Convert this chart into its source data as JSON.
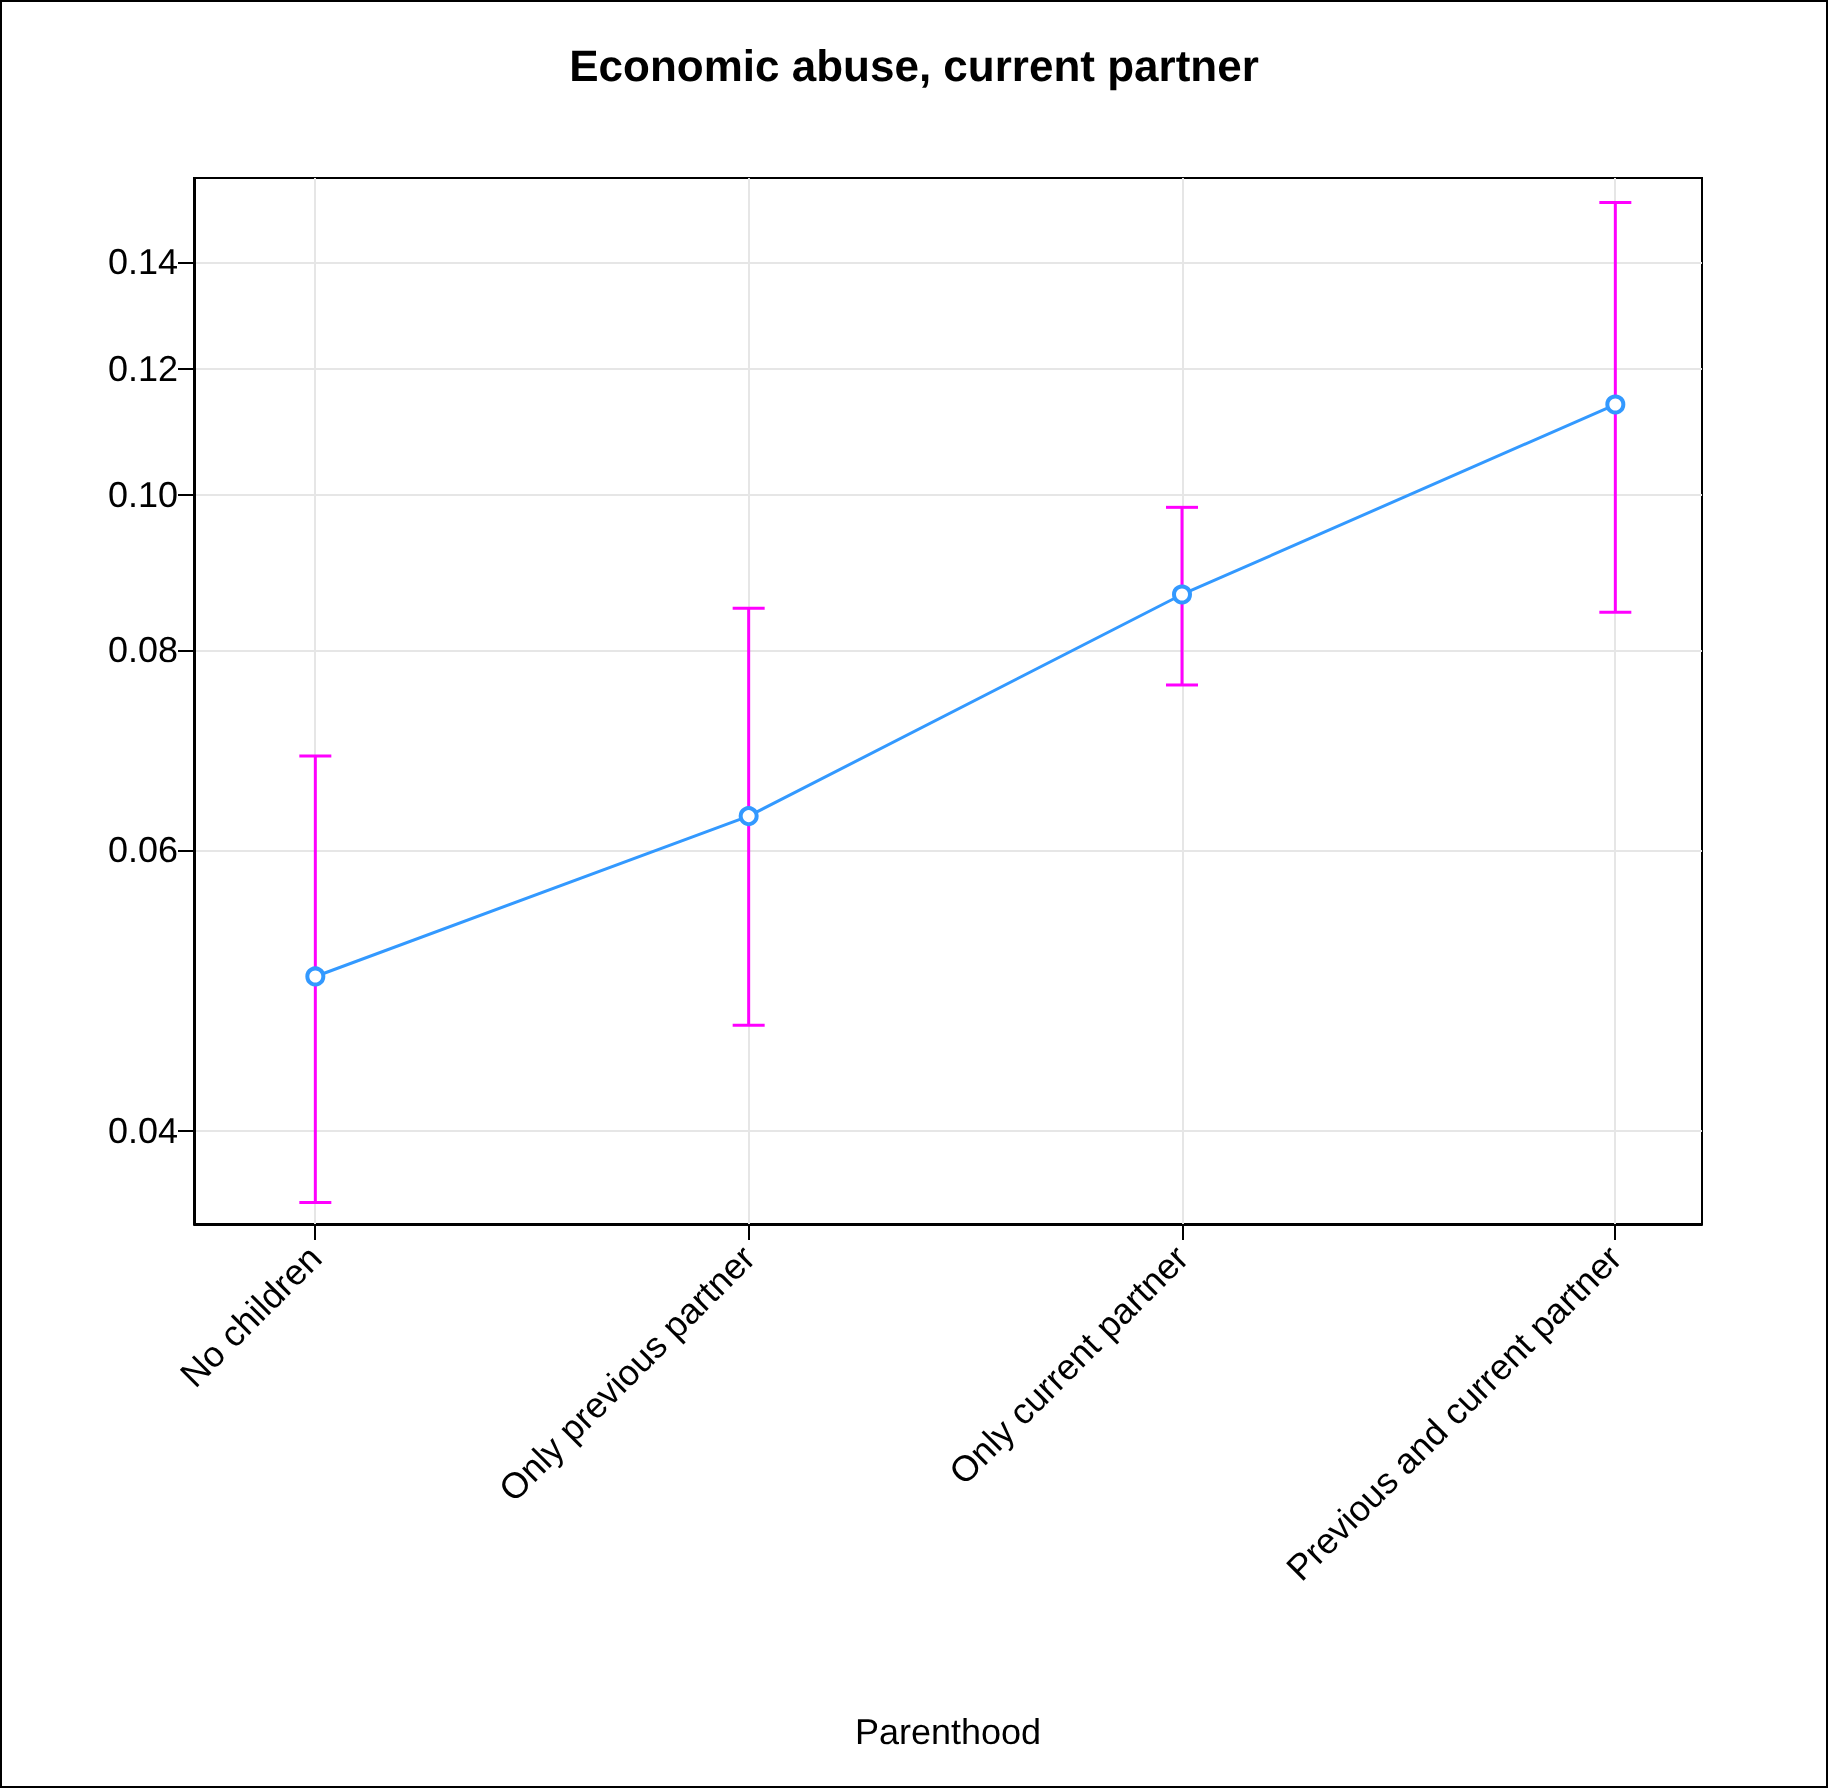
{
  "chart_data": {
    "type": "line",
    "title": "Economic abuse, current partner",
    "xlabel": "Parenthood",
    "categories": [
      "No children",
      "Only previous partner",
      "Only current partner",
      "Previous and current partner"
    ],
    "series": [
      {
        "color": "#3399ff",
        "values": [
          0.05,
          0.063,
          0.0867,
          0.114
        ],
        "errors": [
          [
            0.0361,
            0.0687
          ],
          [
            0.0466,
            0.085
          ],
          [
            0.0761,
            0.0983
          ],
          [
            0.0845,
            0.1525
          ]
        ]
      }
    ],
    "ylim": [
      0.035,
      0.158
    ],
    "yticks": [
      {
        "value": 0.04,
        "label": "0.04"
      },
      {
        "value": 0.06,
        "label": "0.06"
      },
      {
        "value": 0.08,
        "label": "0.08"
      },
      {
        "value": 0.1,
        "label": "0.10"
      },
      {
        "value": 0.12,
        "label": "0.12"
      },
      {
        "value": 0.14,
        "label": "0.14"
      }
    ],
    "log": "y",
    "grid": true,
    "marker": "circle",
    "line_style": "solid"
  }
}
